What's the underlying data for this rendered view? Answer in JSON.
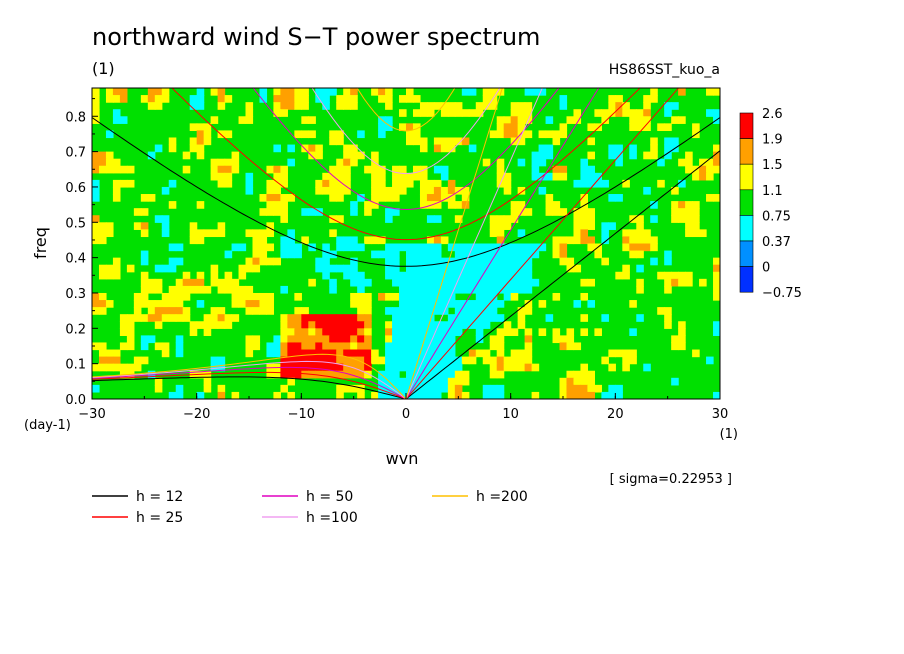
{
  "chart_data": {
    "type": "heatmap",
    "title": "northward wind S−T power spectrum",
    "title_unit": "(1)",
    "run_label": "HS86SST_kuo_a",
    "xlabel": "wvn",
    "x_unit": "(1)",
    "ylabel": "freq",
    "y_unit": "(day-1)",
    "xlim": [
      -30,
      30
    ],
    "ylim": [
      0,
      0.88
    ],
    "x_ticks": [
      -30,
      -20,
      -10,
      0,
      10,
      20,
      30
    ],
    "x_tick_labels": [
      "−30",
      "−20",
      "−10",
      "0",
      "10",
      "20",
      "30"
    ],
    "y_ticks": [
      0,
      0.1,
      0.2,
      0.3,
      0.4,
      0.5,
      0.6,
      0.7,
      0.8
    ],
    "y_tick_labels": [
      "0.0",
      "0.1",
      "0.2",
      "0.3",
      "0.4",
      "0.5",
      "0.6",
      "0.7",
      "0.8"
    ],
    "colorbar": {
      "labels": [
        "2.6",
        "1.9",
        "1.5",
        "1.1",
        "0.75",
        "0.37",
        "0",
        "−0.75"
      ],
      "colors": [
        "#ff0000",
        "#ffa000",
        "#ffff00",
        "#00e000",
        "#00ffff",
        "#0090ff",
        "#0030ff"
      ]
    },
    "sigma_note": "[ sigma=0.22953 ]",
    "dispersion_curves": [
      {
        "label": "h = 12",
        "h": 12,
        "color": "#000000"
      },
      {
        "label": "h = 25",
        "h": 25,
        "color": "#ff0000"
      },
      {
        "label": "h = 50",
        "h": 50,
        "color": "#e000c0"
      },
      {
        "label": "h =100",
        "h": 100,
        "color": "#f0a0f0"
      },
      {
        "label": "h =200",
        "h": 200,
        "color": "#ffc000"
      }
    ]
  }
}
